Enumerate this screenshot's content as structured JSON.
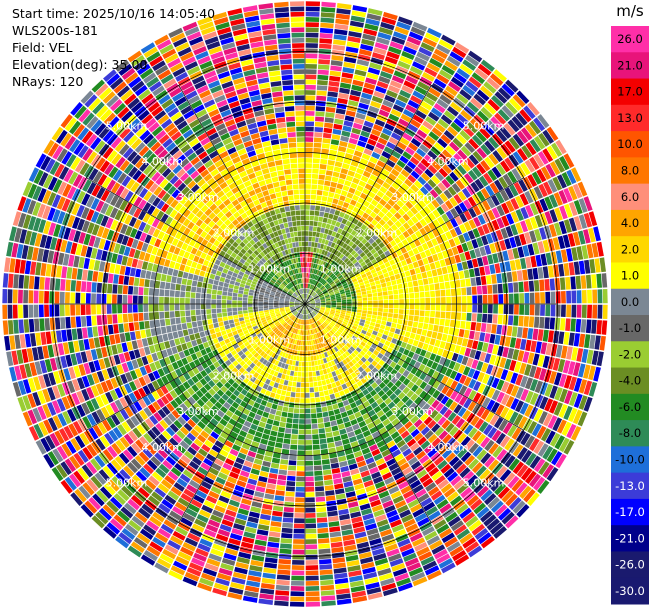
{
  "info": {
    "start_time": "Start time: 2025/10/16 14:05:40",
    "instrument": "WLS200s-181",
    "field": "Field: VEL",
    "elevation": "Elevation(deg): 35.00",
    "nrays": "NRays: 120"
  },
  "chart_data": {
    "type": "heatmap",
    "projection": "polar-ppi",
    "field": "VEL",
    "units": "m/s",
    "n_rays": 120,
    "elevation_deg": 35.0,
    "max_range_km": 6.0,
    "range_ring_labels": [
      "1.00km",
      "2.00km",
      "3.00km",
      "4.00km",
      "5.00km"
    ],
    "colorbar": {
      "title": "m/s",
      "ticks": [
        "26.0",
        "21.0",
        "17.0",
        "13.0",
        "10.0",
        "8.0",
        "6.0",
        "4.0",
        "2.0",
        "1.0",
        "0.0",
        "-1.0",
        "-2.0",
        "-4.0",
        "-6.0",
        "-8.0",
        "-10.0",
        "-13.0",
        "-17.0",
        "-21.0",
        "-26.0",
        "-30.0"
      ],
      "colors": [
        "#ff2fa8",
        "#e8147a",
        "#f40000",
        "#ff2a2a",
        "#ff5500",
        "#ff7700",
        "#ff8f7a",
        "#ffa500",
        "#ffd700",
        "#ffff00",
        "#7b8794",
        "#686868",
        "#9acd32",
        "#6b8e23",
        "#228b22",
        "#2e8b57",
        "#1e6fd9",
        "#3c3cd8",
        "#0000ff",
        "#00008b",
        "#1a1a6e",
        "#191970"
      ]
    },
    "approx_pattern": {
      "inner_1km": "grey and green (about -2 to 0 m/s) with orange/yellow (2 to 6 m/s) to the south and a narrow red/pink sliver to the north",
      "ring_1_to_2_km": "yellow (2 to 4 m/s) toward the south and north-east, olive/green (-4 to -1 m/s) toward the north and west",
      "ring_2_to_3_km": "orange and yellow (4 to 8 m/s) toward the north, green (-6 to -2 m/s) toward the south",
      "beyond_3km": "noise: random colors across the full scale"
    }
  }
}
